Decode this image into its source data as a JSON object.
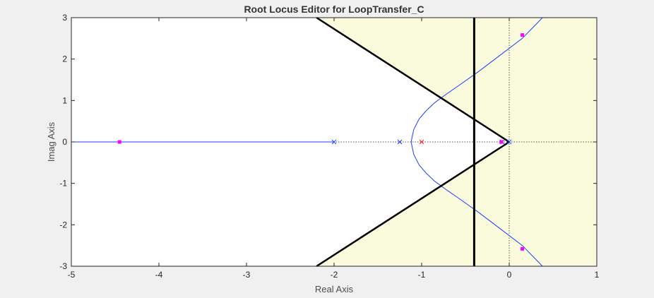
{
  "chart_data": {
    "type": "line",
    "title": "Root Locus Editor for LoopTransfer_C",
    "xlabel": "Real Axis",
    "ylabel": "Imag Axis",
    "xlim": [
      -5,
      1
    ],
    "ylim": [
      -3,
      3
    ],
    "xticks": [
      -5,
      -4,
      -3,
      -2,
      -1,
      0,
      1
    ],
    "yticks": [
      -3,
      -2,
      -1,
      0,
      1,
      2,
      3
    ],
    "grid": false,
    "colors": {
      "locus": "#1f3fff",
      "pole": "#1f3fff",
      "closed_loop_pole": "#ff00ff",
      "constraint": "#000000",
      "feasible_region": "#ffffff",
      "infeasible_region": "#fafadc",
      "reference_line": "#555555"
    },
    "series": [
      {
        "kind": "locus-branch",
        "points": [
          [
            -5,
            0
          ],
          [
            -2.0,
            0
          ]
        ]
      },
      {
        "kind": "locus-branch",
        "points": [
          [
            -1.12,
            0
          ],
          [
            -1.09,
            -0.3
          ],
          [
            -1.03,
            -0.55
          ],
          [
            -0.95,
            -0.75
          ],
          [
            -0.85,
            -0.95
          ],
          [
            -0.72,
            -1.15
          ],
          [
            -0.55,
            -1.4
          ],
          [
            -0.35,
            -1.7
          ],
          [
            -0.1,
            -2.1
          ],
          [
            0.15,
            -2.5
          ],
          [
            0.38,
            -3.0
          ]
        ]
      },
      {
        "kind": "locus-branch",
        "points": [
          [
            -1.12,
            0
          ],
          [
            -1.09,
            0.3
          ],
          [
            -1.03,
            0.55
          ],
          [
            -0.95,
            0.75
          ],
          [
            -0.85,
            0.95
          ],
          [
            -0.72,
            1.15
          ],
          [
            -0.55,
            1.4
          ],
          [
            -0.35,
            1.7
          ],
          [
            -0.1,
            2.1
          ],
          [
            0.15,
            2.5
          ],
          [
            0.38,
            3.0
          ]
        ]
      }
    ],
    "open_loop_poles": [
      [
        -2.0,
        0
      ],
      [
        -1.25,
        0
      ],
      [
        0,
        0
      ],
      [
        -0.08,
        0
      ]
    ],
    "closed_loop_poles": [
      [
        -4.45,
        0
      ],
      [
        -1.0,
        0
      ],
      [
        -0.09,
        0
      ],
      [
        0.15,
        2.58
      ],
      [
        0.15,
        -2.58
      ]
    ],
    "design_constraints": {
      "settling_time_line_real": -0.4,
      "damping_vertex": [
        0,
        0
      ],
      "damping_edges_to": [
        [
          -2.2,
          3
        ],
        [
          -2.2,
          -3
        ]
      ]
    }
  }
}
